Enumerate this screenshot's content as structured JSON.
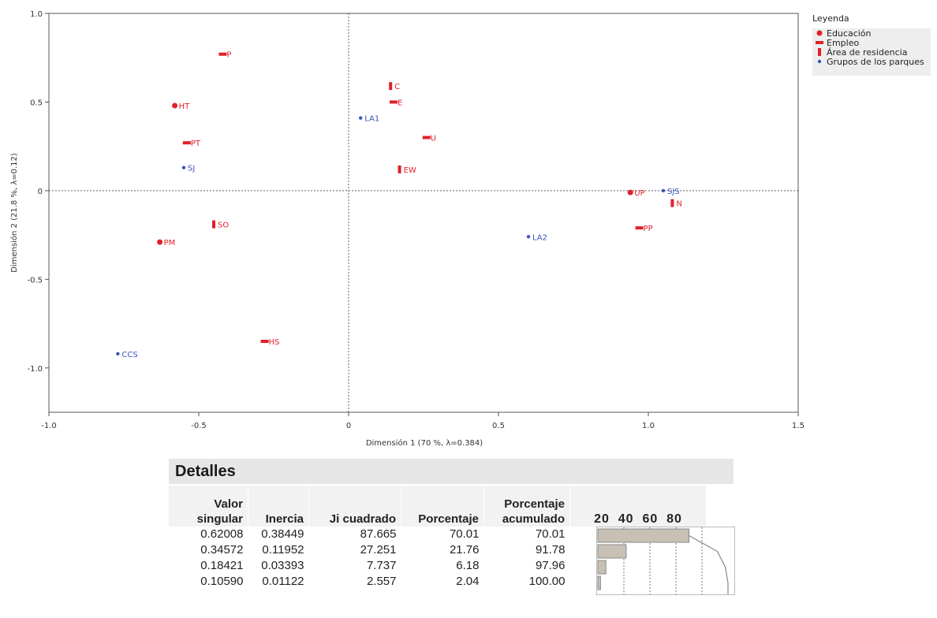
{
  "chart_data": {
    "type": "scatter",
    "xlabel": "Dimensión 1  (70 %, λ=0.384)",
    "ylabel": "Dimensión 2  (21.8 %, λ=0.12)",
    "xlim": [
      -1.0,
      1.5
    ],
    "ylim": [
      -1.25,
      1.0
    ],
    "xticks": [
      "-1.0",
      "-0.5",
      "0",
      "0.5",
      "1.0",
      "1.5"
    ],
    "yticks": [
      "1.0",
      "0.5",
      "0",
      "-0.5",
      "-1.0"
    ],
    "legend": {
      "title": "Leyenda",
      "placement": "right",
      "items": [
        {
          "label": "Educación",
          "marker": "circle",
          "color": "#e0202a"
        },
        {
          "label": "Empleo",
          "marker": "hbar",
          "color": "#e0202a"
        },
        {
          "label": "Área de residencia",
          "marker": "vbar",
          "color": "#e0202a"
        },
        {
          "label": "Grupos de los parques",
          "marker": "dot",
          "color": "#3a55c0"
        }
      ]
    },
    "points": [
      {
        "label": "P",
        "x": -0.42,
        "y": 0.77,
        "group": "Empleo"
      },
      {
        "label": "HT",
        "x": -0.58,
        "y": 0.48,
        "group": "Educación"
      },
      {
        "label": "PT",
        "x": -0.54,
        "y": 0.27,
        "group": "Empleo"
      },
      {
        "label": "SJ",
        "x": -0.55,
        "y": 0.13,
        "group": "Grupos de los parques"
      },
      {
        "label": "SO",
        "x": -0.45,
        "y": -0.19,
        "group": "Área de residencia"
      },
      {
        "label": "PM",
        "x": -0.63,
        "y": -0.29,
        "group": "Educación"
      },
      {
        "label": "HS",
        "x": -0.28,
        "y": -0.85,
        "group": "Empleo"
      },
      {
        "label": "CCS",
        "x": -0.77,
        "y": -0.92,
        "group": "Grupos de los parques"
      },
      {
        "label": "C",
        "x": 0.14,
        "y": 0.59,
        "group": "Área de residencia"
      },
      {
        "label": "E",
        "x": 0.15,
        "y": 0.5,
        "group": "Empleo"
      },
      {
        "label": "LA1",
        "x": 0.04,
        "y": 0.41,
        "group": "Grupos de los parques"
      },
      {
        "label": "U",
        "x": 0.26,
        "y": 0.3,
        "group": "Empleo"
      },
      {
        "label": "EW",
        "x": 0.17,
        "y": 0.12,
        "group": "Área de residencia"
      },
      {
        "label": "UP",
        "x": 0.94,
        "y": -0.01,
        "group": "Educación"
      },
      {
        "label": "SJS",
        "x": 1.05,
        "y": 0.0,
        "group": "Grupos de los parques"
      },
      {
        "label": "N",
        "x": 1.08,
        "y": -0.07,
        "group": "Área de residencia"
      },
      {
        "label": "PP",
        "x": 0.97,
        "y": -0.21,
        "group": "Empleo"
      },
      {
        "label": "LA2",
        "x": 0.6,
        "y": -0.26,
        "group": "Grupos de los parques"
      }
    ]
  },
  "details": {
    "title": "Detalles",
    "headers": [
      {
        "line1": "Valor",
        "line2": "singular"
      },
      {
        "line1": "",
        "line2": "Inercia"
      },
      {
        "line1": "",
        "line2": "Ji cuadrado"
      },
      {
        "line1": "",
        "line2": "Porcentaje"
      },
      {
        "line1": "Porcentaje",
        "line2": "acumulado"
      }
    ],
    "bar_axis_ticks": [
      "20",
      "40",
      "60",
      "80"
    ],
    "rows": [
      {
        "valor_singular": "0.62008",
        "inercia": "0.38449",
        "ji_cuadrado": "87.665",
        "porcentaje": "70.01",
        "acumulado": "70.01",
        "pct": 70.01
      },
      {
        "valor_singular": "0.34572",
        "inercia": "0.11952",
        "ji_cuadrado": "27.251",
        "porcentaje": "21.76",
        "acumulado": "91.78",
        "pct": 21.76
      },
      {
        "valor_singular": "0.18421",
        "inercia": "0.03393",
        "ji_cuadrado": "7.737",
        "porcentaje": "6.18",
        "acumulado": "97.96",
        "pct": 6.18
      },
      {
        "valor_singular": "0.10590",
        "inercia": "0.01122",
        "ji_cuadrado": "2.557",
        "porcentaje": "2.04",
        "acumulado": "100.00",
        "pct": 2.04
      }
    ]
  }
}
